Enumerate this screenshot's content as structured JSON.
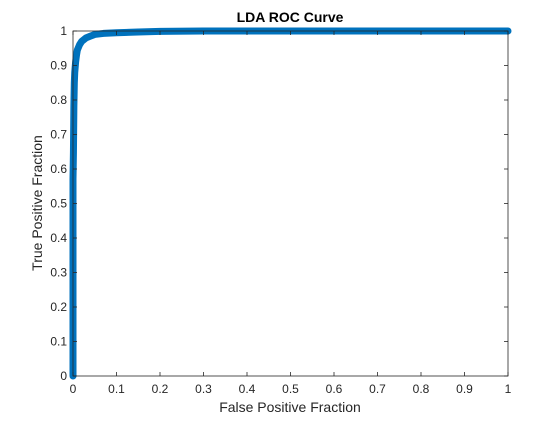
{
  "chart_data": {
    "type": "line",
    "title": "LDA ROC Curve",
    "xlabel": "False Positive Fraction",
    "ylabel": "True Positive Fraction",
    "xlim": [
      0,
      1
    ],
    "ylim": [
      0,
      1
    ],
    "xticks": [
      0,
      0.1,
      0.2,
      0.3,
      0.4,
      0.5,
      0.6,
      0.7,
      0.8,
      0.9,
      1
    ],
    "yticks": [
      0,
      0.1,
      0.2,
      0.3,
      0.4,
      0.5,
      0.6,
      0.7,
      0.8,
      0.9,
      1
    ],
    "grid": false,
    "series_color": "#0072BD",
    "series": [
      {
        "x": [
          0,
          0,
          0.001,
          0.002,
          0.003,
          0.004,
          0.006,
          0.008,
          0.01,
          0.015,
          0.02,
          0.025,
          0.03,
          0.04,
          0.05,
          0.07,
          0.1,
          0.15,
          0.2,
          0.3,
          0.4,
          0.5,
          0.6,
          0.7,
          0.8,
          0.9,
          1.0
        ],
        "y": [
          0,
          0.57,
          0.65,
          0.78,
          0.85,
          0.88,
          0.91,
          0.93,
          0.945,
          0.96,
          0.97,
          0.975,
          0.98,
          0.985,
          0.99,
          0.993,
          0.995,
          0.997,
          0.999,
          1.0,
          1.0,
          1.0,
          1.0,
          1.0,
          1.0,
          1.0,
          1.0
        ]
      }
    ]
  }
}
